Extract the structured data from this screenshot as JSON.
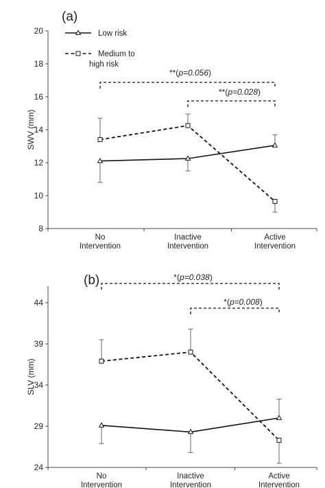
{
  "chart_data": [
    {
      "type": "line",
      "panel_label": "(a)",
      "title": "",
      "xlabel": "",
      "ylabel": "SWV (mm)",
      "ylim": [
        8,
        20
      ],
      "yticks": [
        8,
        10,
        12,
        14,
        16,
        18,
        20
      ],
      "categories": [
        [
          "No",
          "Intervention"
        ],
        [
          "Inactive",
          "Intervention"
        ],
        [
          "Active",
          "Intervention"
        ]
      ],
      "legend_position": "top-left",
      "grid": false,
      "series": [
        {
          "name": "Low risk",
          "style": "solid",
          "marker": "triangle",
          "values": [
            12.1,
            12.25,
            13.05
          ],
          "err_low": [
            10.8,
            11.5,
            null
          ],
          "err_high": [
            null,
            null,
            13.7
          ]
        },
        {
          "name": "Medium to high risk",
          "style": "dashed",
          "marker": "square",
          "values": [
            13.4,
            14.25,
            9.65
          ],
          "err_low": [
            null,
            null,
            9.0
          ],
          "err_high": [
            14.7,
            14.95,
            null
          ]
        }
      ],
      "annotations": [
        {
          "text": "**(p=0.056)",
          "from": 0,
          "to": 2,
          "level": 1
        },
        {
          "text": "**(p=0.028)",
          "from": 1,
          "to": 2,
          "level": 2
        }
      ]
    },
    {
      "type": "line",
      "panel_label": "(b)",
      "title": "",
      "xlabel": "",
      "ylabel": "SLV (mm)",
      "ylim": [
        24,
        46
      ],
      "yticks": [
        24,
        29,
        34,
        39,
        44
      ],
      "categories": [
        [
          "No",
          "Intervention"
        ],
        [
          "Inactive",
          "Intervention"
        ],
        [
          "Active",
          "Intervention"
        ]
      ],
      "legend_position": "none",
      "grid": false,
      "series": [
        {
          "name": "Low risk",
          "style": "solid",
          "marker": "triangle",
          "values": [
            29.1,
            28.3,
            30.0
          ],
          "err_low": [
            26.9,
            25.8,
            null
          ],
          "err_high": [
            null,
            null,
            32.3
          ]
        },
        {
          "name": "Medium to high risk",
          "style": "dashed",
          "marker": "square",
          "values": [
            36.9,
            38.0,
            27.3
          ],
          "err_low": [
            null,
            null,
            24.5
          ],
          "err_high": [
            39.5,
            40.8,
            null
          ]
        }
      ],
      "annotations": [
        {
          "text": "*(p=0.038)",
          "from": 0,
          "to": 2,
          "level": 1
        },
        {
          "text": "*(p=0.008)",
          "from": 1,
          "to": 2,
          "level": 2
        }
      ]
    }
  ]
}
